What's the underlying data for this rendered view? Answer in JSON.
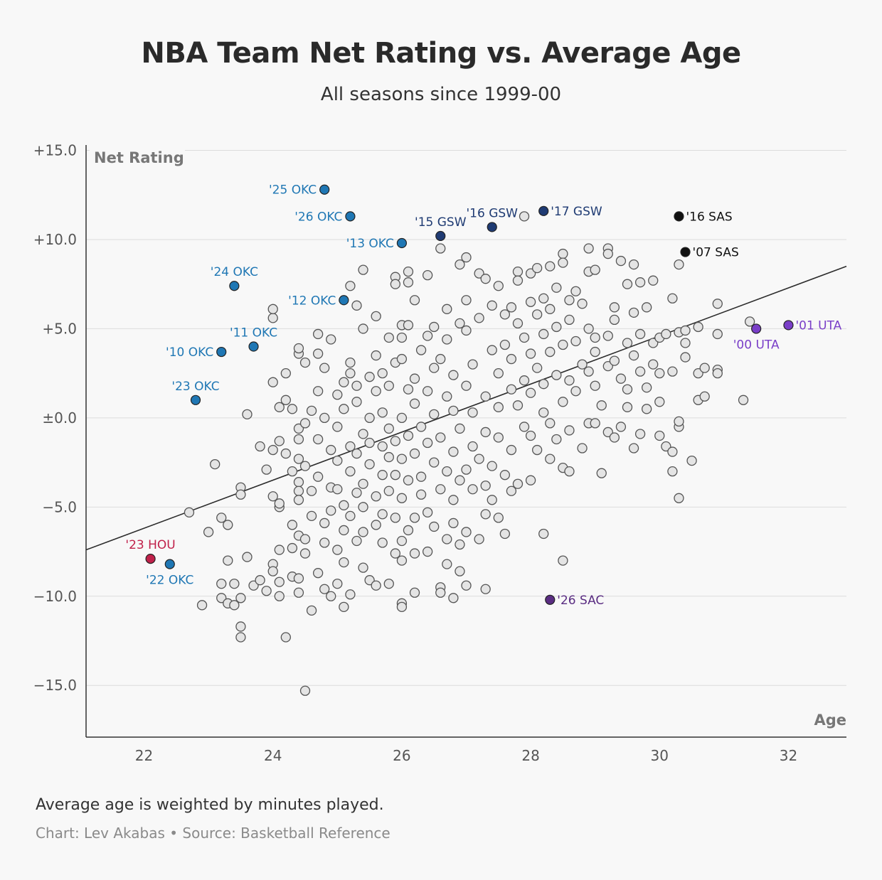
{
  "header": {
    "title": "NBA Team Net Rating vs. Average Age",
    "subtitle": "All seasons since 1999-00"
  },
  "footer": {
    "note": "Average age is weighted by minutes played.",
    "credit": "Chart: Lev Akabas • Source: Basketball Reference"
  },
  "colors": {
    "okc": "#1f77b4",
    "gsw": "#1f3b73",
    "sas": "#111111",
    "uta": "#7a3fc8",
    "hou": "#c0214a",
    "sac": "#5a2d82",
    "background_point": "#e4e4e4"
  },
  "chart_data": {
    "type": "scatter",
    "title": "NBA Team Net Rating vs. Average Age",
    "xlabel": "Age",
    "ylabel": "Net Rating",
    "xlim": [
      21.1,
      32.9
    ],
    "ylim": [
      -17.9,
      15.3
    ],
    "x_ticks": [
      22,
      24,
      26,
      28,
      30,
      32
    ],
    "y_ticks": [
      {
        "value": 15,
        "label": "+15.0"
      },
      {
        "value": 10,
        "label": "+10.0"
      },
      {
        "value": 5,
        "label": "+5.0"
      },
      {
        "value": 0,
        "label": "±0.0"
      },
      {
        "value": -5,
        "label": "−5.0"
      },
      {
        "value": -10,
        "label": "−10.0"
      },
      {
        "value": -15,
        "label": "−15.0"
      }
    ],
    "grid": true,
    "trendline": {
      "x": [
        21.1,
        32.9
      ],
      "y": [
        -7.4,
        8.5
      ]
    },
    "highlighted": [
      {
        "label": "'25 OKC",
        "x": 24.8,
        "y": 12.8,
        "group": "okc",
        "anchor": "end"
      },
      {
        "label": "'26 OKC",
        "x": 25.2,
        "y": 11.3,
        "group": "okc",
        "anchor": "end"
      },
      {
        "label": "'13 OKC",
        "x": 26.0,
        "y": 9.8,
        "group": "okc",
        "anchor": "end"
      },
      {
        "label": "'24 OKC",
        "x": 23.4,
        "y": 7.4,
        "group": "okc",
        "anchor": "above"
      },
      {
        "label": "'12 OKC",
        "x": 25.1,
        "y": 6.6,
        "group": "okc",
        "anchor": "end"
      },
      {
        "label": "'11 OKC",
        "x": 23.7,
        "y": 4.0,
        "group": "okc",
        "anchor": "above"
      },
      {
        "label": "'10 OKC",
        "x": 23.2,
        "y": 3.7,
        "group": "okc",
        "anchor": "end"
      },
      {
        "label": "'23 OKC",
        "x": 22.8,
        "y": 1.0,
        "group": "okc",
        "anchor": "above"
      },
      {
        "label": "'22 OKC",
        "x": 22.4,
        "y": -8.2,
        "group": "okc",
        "anchor": "below"
      },
      {
        "label": "'15 GSW",
        "x": 26.6,
        "y": 10.2,
        "group": "gsw",
        "anchor": "above"
      },
      {
        "label": "'16 GSW",
        "x": 27.4,
        "y": 10.7,
        "group": "gsw",
        "anchor": "above"
      },
      {
        "label": "'17 GSW",
        "x": 28.2,
        "y": 11.6,
        "group": "gsw",
        "anchor": "start"
      },
      {
        "label": "'16 SAS",
        "x": 30.3,
        "y": 11.3,
        "group": "sas",
        "anchor": "start"
      },
      {
        "label": "'07 SAS",
        "x": 30.4,
        "y": 9.3,
        "group": "sas",
        "anchor": "start"
      },
      {
        "label": "'00 UTA",
        "x": 31.5,
        "y": 5.0,
        "group": "uta",
        "anchor": "below"
      },
      {
        "label": "'01 UTA",
        "x": 32.0,
        "y": 5.2,
        "group": "uta",
        "anchor": "start"
      },
      {
        "label": "'23 HOU",
        "x": 22.1,
        "y": -7.9,
        "group": "hou",
        "anchor": "above"
      },
      {
        "label": "'26 SAC",
        "x": 28.3,
        "y": -10.2,
        "group": "sac",
        "anchor": "start"
      }
    ],
    "background_points": [
      [
        22.7,
        -5.3
      ],
      [
        22.9,
        -10.5
      ],
      [
        23.0,
        -6.4
      ],
      [
        23.1,
        -2.6
      ],
      [
        23.2,
        -5.6
      ],
      [
        23.2,
        -9.3
      ],
      [
        23.2,
        -10.1
      ],
      [
        23.3,
        -8.0
      ],
      [
        23.3,
        -6.0
      ],
      [
        23.3,
        -10.4
      ],
      [
        23.4,
        -9.3
      ],
      [
        23.4,
        -10.5
      ],
      [
        23.5,
        -10.1
      ],
      [
        23.5,
        -3.9
      ],
      [
        23.5,
        -4.3
      ],
      [
        23.5,
        -11.7
      ],
      [
        23.5,
        -12.3
      ],
      [
        23.6,
        0.2
      ],
      [
        23.6,
        -7.8
      ],
      [
        23.7,
        -9.4
      ],
      [
        23.8,
        -1.6
      ],
      [
        23.8,
        -9.1
      ],
      [
        23.9,
        -2.9
      ],
      [
        23.9,
        -9.7
      ],
      [
        24.0,
        -1.8
      ],
      [
        24.0,
        2.0
      ],
      [
        24.0,
        5.6
      ],
      [
        24.0,
        6.1
      ],
      [
        24.0,
        -4.4
      ],
      [
        24.0,
        -8.2
      ],
      [
        24.0,
        -8.6
      ],
      [
        24.1,
        -5.0
      ],
      [
        24.1,
        -7.4
      ],
      [
        24.1,
        -9.2
      ],
      [
        24.1,
        -10.0
      ],
      [
        24.1,
        -4.8
      ],
      [
        24.1,
        -1.3
      ],
      [
        24.1,
        0.6
      ],
      [
        24.2,
        -12.3
      ],
      [
        24.2,
        -2.0
      ],
      [
        24.2,
        1.0
      ],
      [
        24.2,
        2.5
      ],
      [
        24.3,
        -3.0
      ],
      [
        24.3,
        -6.0
      ],
      [
        24.3,
        -7.3
      ],
      [
        24.3,
        -8.9
      ],
      [
        24.3,
        0.5
      ],
      [
        24.4,
        3.6
      ],
      [
        24.4,
        3.9
      ],
      [
        24.4,
        -0.6
      ],
      [
        24.4,
        -1.2
      ],
      [
        24.4,
        -2.3
      ],
      [
        24.4,
        -3.6
      ],
      [
        24.4,
        -4.1
      ],
      [
        24.4,
        -4.6
      ],
      [
        24.4,
        -6.6
      ],
      [
        24.4,
        -9.0
      ],
      [
        24.4,
        -9.8
      ],
      [
        24.5,
        -15.3
      ],
      [
        24.5,
        -0.3
      ],
      [
        24.5,
        -6.8
      ],
      [
        24.5,
        -7.6
      ],
      [
        24.5,
        3.1
      ],
      [
        24.5,
        -2.7
      ],
      [
        24.6,
        -10.8
      ],
      [
        24.6,
        -4.1
      ],
      [
        24.6,
        -5.5
      ],
      [
        24.6,
        0.4
      ],
      [
        24.7,
        -1.2
      ],
      [
        24.7,
        -3.3
      ],
      [
        24.7,
        -8.7
      ],
      [
        24.7,
        1.5
      ],
      [
        24.7,
        3.6
      ],
      [
        24.7,
        4.7
      ],
      [
        24.8,
        -5.9
      ],
      [
        24.8,
        -7.0
      ],
      [
        24.8,
        -9.6
      ],
      [
        24.8,
        2.8
      ],
      [
        24.8,
        0.0
      ],
      [
        24.9,
        -1.8
      ],
      [
        24.9,
        -3.9
      ],
      [
        24.9,
        -5.2
      ],
      [
        24.9,
        4.4
      ],
      [
        24.9,
        -10.0
      ],
      [
        25.0,
        -2.4
      ],
      [
        25.0,
        -0.5
      ],
      [
        25.0,
        1.3
      ],
      [
        25.0,
        -4.0
      ],
      [
        25.0,
        -7.4
      ],
      [
        25.0,
        -9.3
      ],
      [
        25.1,
        2.0
      ],
      [
        25.1,
        -6.3
      ],
      [
        25.1,
        -8.1
      ],
      [
        25.1,
        -10.6
      ],
      [
        25.1,
        -4.9
      ],
      [
        25.1,
        0.5
      ],
      [
        25.2,
        3.1
      ],
      [
        25.2,
        2.5
      ],
      [
        25.2,
        -1.6
      ],
      [
        25.2,
        -3.0
      ],
      [
        25.2,
        -5.5
      ],
      [
        25.2,
        7.4
      ],
      [
        25.2,
        -9.9
      ],
      [
        25.3,
        -6.9
      ],
      [
        25.3,
        6.3
      ],
      [
        25.3,
        -2.0
      ],
      [
        25.3,
        -4.2
      ],
      [
        25.3,
        0.9
      ],
      [
        25.3,
        1.8
      ],
      [
        25.4,
        -8.4
      ],
      [
        25.4,
        8.3
      ],
      [
        25.4,
        5.0
      ],
      [
        25.4,
        -0.9
      ],
      [
        25.4,
        -3.7
      ],
      [
        25.4,
        -5.0
      ],
      [
        25.4,
        -6.4
      ],
      [
        25.5,
        -9.1
      ],
      [
        25.5,
        -1.4
      ],
      [
        25.5,
        -2.6
      ],
      [
        25.5,
        2.3
      ],
      [
        25.5,
        0.0
      ],
      [
        25.6,
        -9.4
      ],
      [
        25.6,
        -4.4
      ],
      [
        25.6,
        -6.0
      ],
      [
        25.6,
        5.7
      ],
      [
        25.6,
        3.5
      ],
      [
        25.6,
        1.5
      ],
      [
        25.7,
        -1.6
      ],
      [
        25.7,
        -3.2
      ],
      [
        25.7,
        -5.4
      ],
      [
        25.7,
        -7.0
      ],
      [
        25.7,
        0.3
      ],
      [
        25.7,
        2.5
      ],
      [
        25.8,
        -9.3
      ],
      [
        25.8,
        4.5
      ],
      [
        25.8,
        -2.2
      ],
      [
        25.8,
        -4.1
      ],
      [
        25.8,
        -0.6
      ],
      [
        25.8,
        1.8
      ],
      [
        25.9,
        -7.6
      ],
      [
        25.9,
        7.9
      ],
      [
        25.9,
        7.5
      ],
      [
        25.9,
        -5.6
      ],
      [
        25.9,
        -3.2
      ],
      [
        25.9,
        -1.3
      ],
      [
        25.9,
        3.1
      ],
      [
        26.0,
        -10.4
      ],
      [
        26.0,
        -10.6
      ],
      [
        26.0,
        -6.9
      ],
      [
        26.0,
        -8.0
      ],
      [
        26.0,
        5.2
      ],
      [
        26.0,
        4.5
      ],
      [
        26.0,
        3.3
      ],
      [
        26.0,
        -2.3
      ],
      [
        26.0,
        -4.5
      ],
      [
        26.0,
        0.0
      ],
      [
        26.1,
        8.2
      ],
      [
        26.1,
        7.6
      ],
      [
        26.1,
        -6.3
      ],
      [
        26.1,
        -3.5
      ],
      [
        26.1,
        -1.0
      ],
      [
        26.1,
        1.6
      ],
      [
        26.1,
        5.2
      ],
      [
        26.2,
        -5.6
      ],
      [
        26.2,
        -7.6
      ],
      [
        26.2,
        -9.8
      ],
      [
        26.2,
        6.6
      ],
      [
        26.2,
        2.2
      ],
      [
        26.2,
        -2.0
      ],
      [
        26.2,
        0.8
      ],
      [
        26.3,
        -4.3
      ],
      [
        26.3,
        3.8
      ],
      [
        26.3,
        -0.5
      ],
      [
        26.3,
        -3.3
      ],
      [
        26.4,
        8.0
      ],
      [
        26.4,
        -7.5
      ],
      [
        26.4,
        4.6
      ],
      [
        26.4,
        -1.4
      ],
      [
        26.4,
        -5.3
      ],
      [
        26.4,
        1.5
      ],
      [
        26.5,
        -6.1
      ],
      [
        26.5,
        -2.5
      ],
      [
        26.5,
        2.8
      ],
      [
        26.5,
        0.2
      ],
      [
        26.5,
        5.1
      ],
      [
        26.6,
        9.5
      ],
      [
        26.6,
        -9.5
      ],
      [
        26.6,
        -4.0
      ],
      [
        26.6,
        -9.8
      ],
      [
        26.6,
        -1.1
      ],
      [
        26.6,
        3.3
      ],
      [
        26.7,
        -6.8
      ],
      [
        26.7,
        -3.0
      ],
      [
        26.7,
        -8.2
      ],
      [
        26.7,
        1.2
      ],
      [
        26.7,
        4.4
      ],
      [
        26.7,
        6.1
      ],
      [
        26.8,
        -5.9
      ],
      [
        26.8,
        -1.9
      ],
      [
        26.8,
        -4.6
      ],
      [
        26.8,
        0.4
      ],
      [
        26.8,
        -10.1
      ],
      [
        26.8,
        2.4
      ],
      [
        26.9,
        8.6
      ],
      [
        26.9,
        5.3
      ],
      [
        26.9,
        -7.1
      ],
      [
        26.9,
        -3.5
      ],
      [
        26.9,
        -8.6
      ],
      [
        26.9,
        -0.6
      ],
      [
        27.0,
        9.0
      ],
      [
        27.0,
        -6.4
      ],
      [
        27.0,
        -9.4
      ],
      [
        27.0,
        -2.9
      ],
      [
        27.0,
        1.8
      ],
      [
        27.0,
        4.9
      ],
      [
        27.0,
        6.6
      ],
      [
        27.1,
        -4.0
      ],
      [
        27.1,
        -1.6
      ],
      [
        27.1,
        3.0
      ],
      [
        27.1,
        0.3
      ],
      [
        27.2,
        8.1
      ],
      [
        27.2,
        -6.8
      ],
      [
        27.2,
        -2.3
      ],
      [
        27.2,
        5.6
      ],
      [
        27.3,
        -5.4
      ],
      [
        27.3,
        7.8
      ],
      [
        27.3,
        -9.6
      ],
      [
        27.3,
        -3.8
      ],
      [
        27.3,
        1.2
      ],
      [
        27.3,
        -0.8
      ],
      [
        27.4,
        3.8
      ],
      [
        27.4,
        6.3
      ],
      [
        27.4,
        -2.7
      ],
      [
        27.4,
        -4.6
      ],
      [
        27.5,
        7.4
      ],
      [
        27.5,
        -5.6
      ],
      [
        27.5,
        0.6
      ],
      [
        27.5,
        2.5
      ],
      [
        27.5,
        -1.1
      ],
      [
        27.6,
        -6.5
      ],
      [
        27.6,
        4.1
      ],
      [
        27.6,
        -3.2
      ],
      [
        27.6,
        5.8
      ],
      [
        27.7,
        6.2
      ],
      [
        27.7,
        -4.1
      ],
      [
        27.7,
        -1.8
      ],
      [
        27.7,
        1.6
      ],
      [
        27.7,
        3.3
      ],
      [
        27.8,
        8.2
      ],
      [
        27.8,
        7.7
      ],
      [
        27.8,
        -3.7
      ],
      [
        27.8,
        5.3
      ],
      [
        27.8,
        0.7
      ],
      [
        27.9,
        11.3
      ],
      [
        27.9,
        -0.5
      ],
      [
        27.9,
        2.1
      ],
      [
        27.9,
        4.5
      ],
      [
        28.0,
        -3.5
      ],
      [
        28.0,
        6.5
      ],
      [
        28.0,
        8.1
      ],
      [
        28.0,
        3.6
      ],
      [
        28.0,
        1.4
      ],
      [
        28.0,
        -1.0
      ],
      [
        28.1,
        8.4
      ],
      [
        28.1,
        5.8
      ],
      [
        28.1,
        -1.8
      ],
      [
        28.1,
        2.8
      ],
      [
        28.2,
        -6.5
      ],
      [
        28.2,
        4.7
      ],
      [
        28.2,
        0.3
      ],
      [
        28.2,
        6.7
      ],
      [
        28.2,
        1.9
      ],
      [
        28.3,
        -2.3
      ],
      [
        28.3,
        8.5
      ],
      [
        28.3,
        3.7
      ],
      [
        28.3,
        -0.3
      ],
      [
        28.3,
        6.1
      ],
      [
        28.4,
        2.4
      ],
      [
        28.4,
        5.1
      ],
      [
        28.4,
        7.3
      ],
      [
        28.4,
        -1.2
      ],
      [
        28.5,
        9.2
      ],
      [
        28.5,
        8.7
      ],
      [
        28.5,
        -8.0
      ],
      [
        28.5,
        -2.8
      ],
      [
        28.5,
        4.1
      ],
      [
        28.5,
        0.9
      ],
      [
        28.6,
        6.6
      ],
      [
        28.6,
        2.1
      ],
      [
        28.6,
        -0.7
      ],
      [
        28.6,
        -3.0
      ],
      [
        28.6,
        5.5
      ],
      [
        28.7,
        4.3
      ],
      [
        28.7,
        1.5
      ],
      [
        28.7,
        7.1
      ],
      [
        28.8,
        3.0
      ],
      [
        28.8,
        6.4
      ],
      [
        28.8,
        -1.7
      ],
      [
        28.9,
        9.5
      ],
      [
        28.9,
        8.2
      ],
      [
        28.9,
        5.0
      ],
      [
        28.9,
        -0.3
      ],
      [
        28.9,
        2.6
      ],
      [
        29.0,
        4.5
      ],
      [
        29.0,
        8.3
      ],
      [
        29.0,
        1.8
      ],
      [
        29.0,
        3.7
      ],
      [
        29.0,
        -0.3
      ],
      [
        29.1,
        0.7
      ],
      [
        29.1,
        -3.1
      ],
      [
        29.2,
        9.5
      ],
      [
        29.2,
        9.2
      ],
      [
        29.2,
        4.6
      ],
      [
        29.2,
        2.9
      ],
      [
        29.2,
        -0.8
      ],
      [
        29.3,
        6.2
      ],
      [
        29.3,
        3.2
      ],
      [
        29.3,
        -1.1
      ],
      [
        29.3,
        5.5
      ],
      [
        29.4,
        8.8
      ],
      [
        29.4,
        2.2
      ],
      [
        29.4,
        -0.5
      ],
      [
        29.5,
        4.2
      ],
      [
        29.5,
        7.5
      ],
      [
        29.5,
        0.6
      ],
      [
        29.5,
        1.6
      ],
      [
        29.6,
        5.9
      ],
      [
        29.6,
        8.6
      ],
      [
        29.6,
        -1.7
      ],
      [
        29.6,
        3.5
      ],
      [
        29.7,
        7.6
      ],
      [
        29.7,
        4.7
      ],
      [
        29.7,
        2.6
      ],
      [
        29.7,
        -0.9
      ],
      [
        29.8,
        6.2
      ],
      [
        29.8,
        1.7
      ],
      [
        29.8,
        0.5
      ],
      [
        29.9,
        7.7
      ],
      [
        29.9,
        3.0
      ],
      [
        29.9,
        4.2
      ],
      [
        30.0,
        2.5
      ],
      [
        30.0,
        -1.0
      ],
      [
        30.0,
        4.5
      ],
      [
        30.0,
        0.9
      ],
      [
        30.1,
        4.7
      ],
      [
        30.1,
        -1.6
      ],
      [
        30.2,
        6.7
      ],
      [
        30.2,
        2.6
      ],
      [
        30.2,
        -3.0
      ],
      [
        30.2,
        -1.9
      ],
      [
        30.3,
        8.6
      ],
      [
        30.3,
        4.8
      ],
      [
        30.3,
        -0.5
      ],
      [
        30.3,
        -0.2
      ],
      [
        30.3,
        -4.5
      ],
      [
        30.4,
        4.2
      ],
      [
        30.4,
        3.4
      ],
      [
        30.4,
        4.9
      ],
      [
        30.5,
        -2.4
      ],
      [
        30.6,
        2.5
      ],
      [
        30.6,
        5.1
      ],
      [
        30.6,
        1.0
      ],
      [
        30.7,
        2.8
      ],
      [
        30.7,
        1.2
      ],
      [
        30.9,
        6.4
      ],
      [
        30.9,
        4.7
      ],
      [
        30.9,
        2.7
      ],
      [
        30.9,
        2.5
      ],
      [
        31.3,
        1.0
      ],
      [
        31.4,
        5.4
      ]
    ]
  }
}
